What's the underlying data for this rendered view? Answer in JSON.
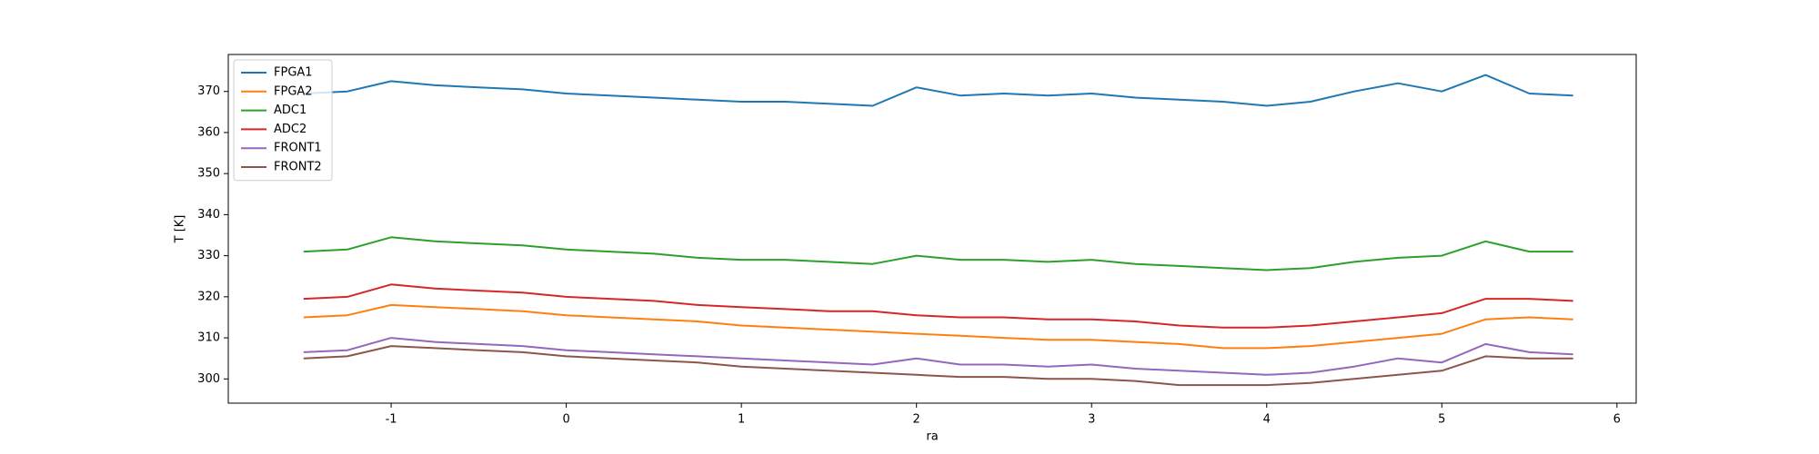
{
  "chart_data": {
    "type": "line",
    "xlabel": "ra",
    "ylabel": "T [K]",
    "x": [
      -1.5,
      -1.25,
      -1,
      -0.75,
      -0.5,
      -0.25,
      0,
      0.25,
      0.5,
      0.75,
      1,
      1.25,
      1.5,
      1.75,
      2,
      2.25,
      2.5,
      2.75,
      3,
      3.25,
      3.5,
      3.75,
      4,
      4.25,
      4.5,
      4.75,
      5,
      5.25,
      5.5,
      5.75
    ],
    "series": [
      {
        "name": "FPGA1",
        "color": "#1f77b4",
        "values": [
          369.5,
          370,
          372.5,
          371.5,
          371,
          370.5,
          369.5,
          369,
          368.5,
          368,
          367.5,
          367.5,
          367,
          366.5,
          371,
          369,
          369.5,
          369,
          369.5,
          368.5,
          368,
          367.5,
          366.5,
          367.5,
          370,
          372,
          370,
          374,
          369.5,
          369
        ]
      },
      {
        "name": "FPGA2",
        "color": "#ff7f0e",
        "values": [
          315,
          315.5,
          318,
          317.5,
          317,
          316.5,
          315.5,
          315,
          314.5,
          314,
          313,
          312.5,
          312,
          311.5,
          311,
          310.5,
          310,
          309.5,
          309.5,
          309,
          308.5,
          307.5,
          307.5,
          308,
          309,
          310,
          311,
          314.5,
          315,
          314.5
        ]
      },
      {
        "name": "ADC1",
        "color": "#2ca02c",
        "values": [
          331,
          331.5,
          334.5,
          333.5,
          333,
          332.5,
          331.5,
          331,
          330.5,
          329.5,
          329,
          329,
          328.5,
          328,
          330,
          329,
          329,
          328.5,
          329,
          328,
          327.5,
          327,
          326.5,
          327,
          328.5,
          329.5,
          330,
          333.5,
          331,
          331
        ]
      },
      {
        "name": "ADC2",
        "color": "#d62728",
        "values": [
          319.5,
          320,
          323,
          322,
          321.5,
          321,
          320,
          319.5,
          319,
          318,
          317.5,
          317,
          316.5,
          316.5,
          315.5,
          315,
          315,
          314.5,
          314.5,
          314,
          313,
          312.5,
          312.5,
          313,
          314,
          315,
          316,
          319.5,
          319.5,
          319
        ]
      },
      {
        "name": "FRONT1",
        "color": "#9467bd",
        "values": [
          306.5,
          307,
          310,
          309,
          308.5,
          308,
          307,
          306.5,
          306,
          305.5,
          305,
          304.5,
          304,
          303.5,
          305,
          303.5,
          303.5,
          303,
          303.5,
          302.5,
          302,
          301.5,
          301,
          301.5,
          303,
          305,
          304,
          308.5,
          306.5,
          306
        ]
      },
      {
        "name": "FRONT2",
        "color": "#8c564b",
        "values": [
          305,
          305.5,
          308,
          307.5,
          307,
          306.5,
          305.5,
          305,
          304.5,
          304,
          303,
          302.5,
          302,
          301.5,
          301,
          300.5,
          300.5,
          300,
          300,
          299.5,
          298.5,
          298.5,
          298.5,
          299,
          300,
          301,
          302,
          305.5,
          305,
          305
        ]
      }
    ],
    "xlim": [
      -1.93,
      6.11
    ],
    "ylim": [
      294.1,
      379.0
    ],
    "xticks": [
      -1,
      0,
      1,
      2,
      3,
      4,
      5,
      6
    ],
    "yticks": [
      300,
      310,
      320,
      330,
      340,
      350,
      360,
      370
    ],
    "legend": "upper left"
  }
}
